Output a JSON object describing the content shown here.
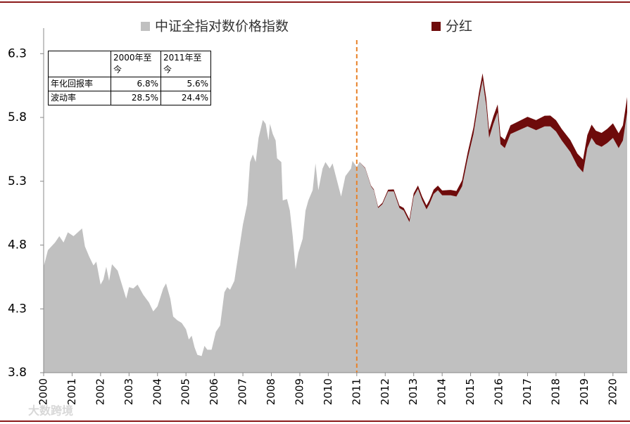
{
  "chart_data": {
    "type": "area",
    "legend": "top",
    "watermark": "大数跨境",
    "xlim": [
      2000,
      2020.5
    ],
    "ylim": [
      3.8,
      6.5
    ],
    "xticks": [
      2000,
      2001,
      2002,
      2003,
      2004,
      2005,
      2006,
      2007,
      2008,
      2009,
      2010,
      2011,
      2012,
      2013,
      2014,
      2015,
      2016,
      2017,
      2018,
      2019,
      2020
    ],
    "yticks": [
      3.8,
      4.3,
      4.8,
      5.3,
      5.8,
      6.3
    ],
    "vline": {
      "x": 2011,
      "color": "#e8822a"
    },
    "x": [
      2000.0,
      2000.15,
      2000.4,
      2000.55,
      2000.7,
      2000.85,
      2001.05,
      2001.2,
      2001.35,
      2001.45,
      2001.6,
      2001.75,
      2001.85,
      2002.0,
      2002.1,
      2002.2,
      2002.3,
      2002.4,
      2002.6,
      2002.75,
      2002.9,
      2003.0,
      2003.15,
      2003.3,
      2003.5,
      2003.7,
      2003.85,
      2004.0,
      2004.2,
      2004.3,
      2004.45,
      2004.55,
      2004.7,
      2004.85,
      2005.0,
      2005.1,
      2005.2,
      2005.3,
      2005.4,
      2005.55,
      2005.65,
      2005.75,
      2005.9,
      2006.05,
      2006.2,
      2006.35,
      2006.45,
      2006.55,
      2006.7,
      2006.85,
      2007.0,
      2007.15,
      2007.25,
      2007.35,
      2007.45,
      2007.55,
      2007.7,
      2007.8,
      2007.9,
      2007.95,
      2008.05,
      2008.15,
      2008.2,
      2008.35,
      2008.4,
      2008.55,
      2008.65,
      2008.75,
      2008.85,
      2008.95,
      2009.1,
      2009.2,
      2009.3,
      2009.45,
      2009.55,
      2009.65,
      2009.8,
      2009.9,
      2010.05,
      2010.15,
      2010.3,
      2010.45,
      2010.6,
      2010.8,
      2010.85,
      2011.0,
      2011.1,
      2011.3,
      2011.5,
      2011.6,
      2011.75,
      2011.9,
      2012.1,
      2012.3,
      2012.5,
      2012.65,
      2012.85,
      2013.0,
      2013.15,
      2013.3,
      2013.45,
      2013.55,
      2013.7,
      2013.85,
      2014.0,
      2014.3,
      2014.5,
      2014.7,
      2014.9,
      2015.1,
      2015.3,
      2015.42,
      2015.55,
      2015.65,
      2015.8,
      2015.95,
      2016.05,
      2016.2,
      2016.4,
      2016.7,
      2017.0,
      2017.3,
      2017.6,
      2017.8,
      2018.0,
      2018.2,
      2018.5,
      2018.75,
      2018.95,
      2019.1,
      2019.25,
      2019.4,
      2019.6,
      2019.8,
      2020.0,
      2020.2,
      2020.35,
      2020.5
    ],
    "series": [
      {
        "name": "中证全指对数价格指数",
        "color": "#c0c0c0",
        "values": [
          4.63,
          4.76,
          4.82,
          4.87,
          4.82,
          4.9,
          4.87,
          4.9,
          4.93,
          4.79,
          4.71,
          4.64,
          4.67,
          4.49,
          4.53,
          4.63,
          4.52,
          4.65,
          4.6,
          4.49,
          4.38,
          4.47,
          4.46,
          4.49,
          4.41,
          4.35,
          4.28,
          4.32,
          4.46,
          4.5,
          4.38,
          4.24,
          4.21,
          4.19,
          4.14,
          4.06,
          4.09,
          4.0,
          3.94,
          3.93,
          4.01,
          3.98,
          3.98,
          4.12,
          4.17,
          4.43,
          4.47,
          4.45,
          4.52,
          4.74,
          4.96,
          5.12,
          5.45,
          5.51,
          5.45,
          5.64,
          5.78,
          5.75,
          5.62,
          5.75,
          5.67,
          5.62,
          5.48,
          5.45,
          5.15,
          5.16,
          5.07,
          4.87,
          4.61,
          4.74,
          4.85,
          5.07,
          5.15,
          5.23,
          5.44,
          5.23,
          5.4,
          5.45,
          5.4,
          5.44,
          5.31,
          5.18,
          5.34,
          5.4,
          5.46,
          5.41,
          5.45,
          5.4,
          5.26,
          5.23,
          5.09,
          5.12,
          5.22,
          5.22,
          5.09,
          5.07,
          4.98,
          5.18,
          5.24,
          5.15,
          5.08,
          5.12,
          5.2,
          5.23,
          5.19,
          5.19,
          5.18,
          5.26,
          5.48,
          5.67,
          5.95,
          6.09,
          5.89,
          5.64,
          5.75,
          5.84,
          5.59,
          5.56,
          5.67,
          5.7,
          5.73,
          5.7,
          5.73,
          5.73,
          5.69,
          5.62,
          5.53,
          5.42,
          5.37,
          5.56,
          5.64,
          5.59,
          5.57,
          5.6,
          5.64,
          5.56,
          5.62,
          5.84
        ]
      },
      {
        "name": "分红",
        "color": "#6e0b0b",
        "values": [
          null,
          null,
          null,
          null,
          null,
          null,
          null,
          null,
          null,
          null,
          null,
          null,
          null,
          null,
          null,
          null,
          null,
          null,
          null,
          null,
          null,
          null,
          null,
          null,
          null,
          null,
          null,
          null,
          null,
          null,
          null,
          null,
          null,
          null,
          null,
          null,
          null,
          null,
          null,
          null,
          null,
          null,
          null,
          null,
          null,
          null,
          null,
          null,
          null,
          null,
          null,
          null,
          null,
          null,
          null,
          null,
          null,
          null,
          null,
          null,
          null,
          null,
          null,
          null,
          null,
          null,
          null,
          null,
          null,
          null,
          null,
          null,
          null,
          null,
          null,
          null,
          null,
          null,
          null,
          null,
          null,
          null,
          null,
          null,
          null,
          0,
          0.001,
          0.004,
          0.006,
          0.007,
          0.009,
          0.011,
          0.014,
          0.016,
          0.019,
          0.021,
          0.023,
          0.025,
          0.027,
          0.029,
          0.031,
          0.032,
          0.034,
          0.036,
          0.038,
          0.042,
          0.044,
          0.047,
          0.049,
          0.052,
          0.054,
          0.056,
          0.057,
          0.058,
          0.06,
          0.062,
          0.063,
          0.065,
          0.068,
          0.071,
          0.075,
          0.079,
          0.083,
          0.085,
          0.088,
          0.09,
          0.094,
          0.097,
          0.1,
          0.102,
          0.104,
          0.106,
          0.109,
          0.111,
          0.114,
          0.116,
          0.118,
          0.12
        ]
      }
    ],
    "table": {
      "columns": [
        "2000年至今",
        "2011年至今"
      ],
      "rows": [
        [
          "年化回报率",
          "6.8%",
          "5.6%"
        ],
        [
          "波动率",
          "28.5%",
          "24.4%"
        ]
      ]
    }
  }
}
